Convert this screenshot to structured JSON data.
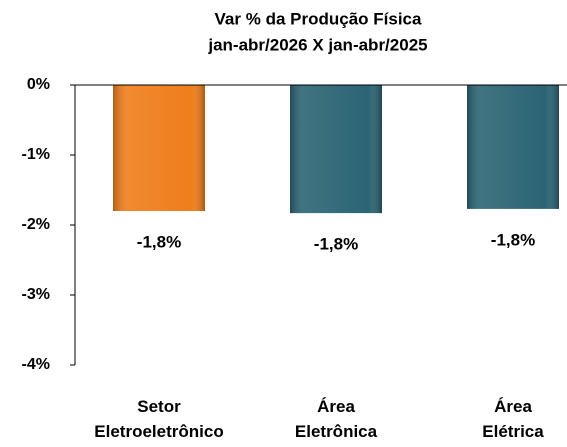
{
  "chart_data": {
    "type": "bar",
    "title": [
      "Var % da Produção Física",
      "jan-abr/2026 X jan-abr/2025"
    ],
    "categories": [
      "Setor Eletroeletrônico",
      "Área Eletrônica",
      "Área Elétrica"
    ],
    "values": [
      -1.8,
      -1.83,
      -1.77
    ],
    "value_labels": [
      "-1,8%",
      "-1,8%",
      "-1,8%"
    ],
    "colors": [
      "#f07d1a",
      "#2b6474",
      "#2b6474"
    ],
    "ylim": [
      -4,
      0
    ],
    "yticks": [
      {
        "value": 0,
        "label": "0%"
      },
      {
        "value": -1,
        "label": "-1%"
      },
      {
        "value": -2,
        "label": "-2%"
      },
      {
        "value": -3,
        "label": "-3%"
      },
      {
        "value": -4,
        "label": "-4%"
      }
    ]
  }
}
